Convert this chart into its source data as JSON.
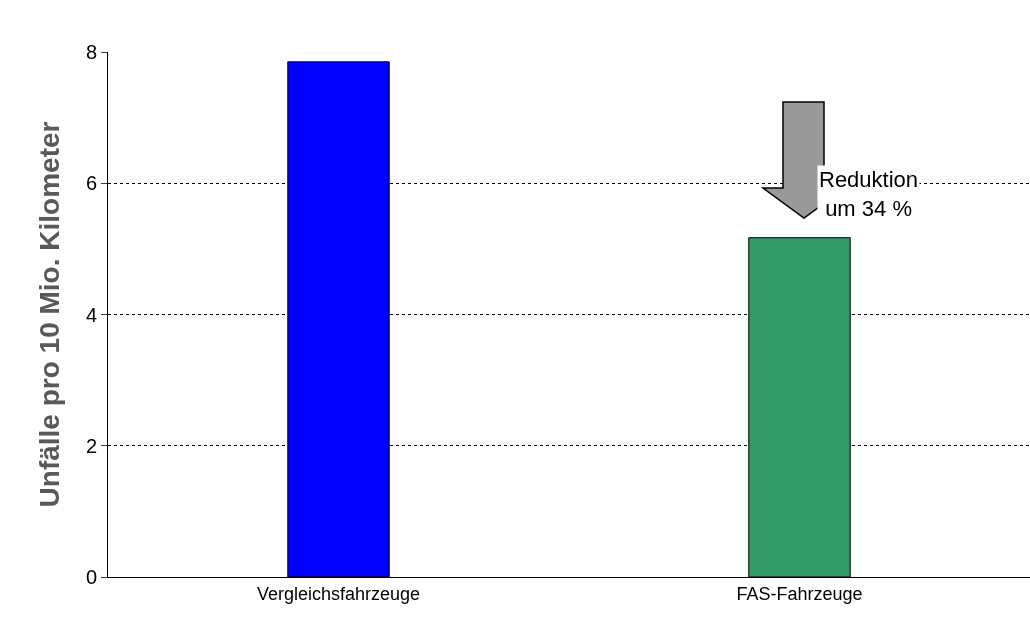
{
  "chart_data": {
    "type": "bar",
    "ylabel": "Unfälle pro 10 Mio. Kilometer",
    "categories": [
      "Vergleichsfahrzeuge",
      "FAS-Fahrzeuge"
    ],
    "values": [
      7.85,
      5.17
    ],
    "colors": [
      "#0000ff",
      "#339966"
    ],
    "ylim": [
      0,
      8
    ],
    "yticks": [
      0,
      2,
      4,
      6,
      8
    ],
    "grid": "y",
    "annotations": [
      "Reduktion\num 34 %"
    ]
  }
}
